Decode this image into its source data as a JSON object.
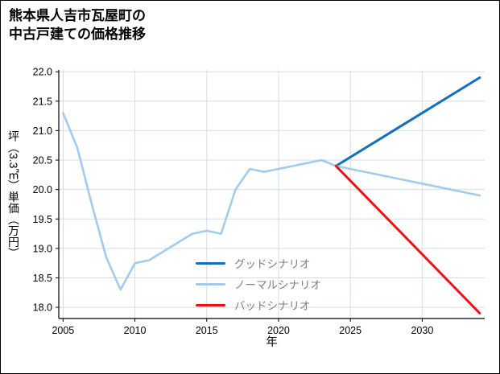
{
  "chart_data": {
    "type": "line",
    "title_lines": [
      "熊本県人吉市瓦屋町の",
      "中古戸建ての価格推移"
    ],
    "title": "熊本県人吉市瓦屋町の中古戸建ての価格推移",
    "xlabel": "年",
    "ylabel": "坪（3.3㎡）単価（万円）",
    "xlim": [
      2004.7,
      2034.35
    ],
    "ylim": [
      17.81,
      22.03
    ],
    "xticks": [
      2005,
      2010,
      2015,
      2020,
      2025,
      2030
    ],
    "yticks": [
      18.0,
      18.5,
      19.0,
      19.5,
      20.0,
      20.5,
      21.0,
      21.5,
      22.0
    ],
    "grid": true,
    "legend_position": "inside-lower-center",
    "colors": {
      "grid": "#d5dde9",
      "axis": "#000000",
      "legend_text": "#7f7f7f",
      "good": "#1170b8",
      "normal": "#a2cbee",
      "bad": "#ed1111"
    },
    "series": [
      {
        "id": "history-actual",
        "label": "",
        "color": "#a2cbee",
        "x": [
          2005,
          2006,
          2007,
          2008,
          2009,
          2010,
          2011,
          2012,
          2013,
          2014,
          2015,
          2016,
          2017,
          2018,
          2019,
          2020,
          2021,
          2022,
          2023,
          2024
        ],
        "y": [
          21.3,
          20.7,
          19.75,
          18.85,
          18.3,
          18.75,
          18.8,
          18.95,
          19.1,
          19.25,
          19.3,
          19.25,
          20.0,
          20.35,
          20.3,
          20.35,
          20.4,
          20.45,
          20.5,
          20.4
        ]
      },
      {
        "id": "good-scenario",
        "label": "グッドシナリオ",
        "color": "#1170b8",
        "x": [
          2024,
          2034
        ],
        "y": [
          20.4,
          21.9
        ]
      },
      {
        "id": "normal-scenario",
        "label": "ノーマルシナリオ",
        "color": "#a2cbee",
        "x": [
          2024,
          2034
        ],
        "y": [
          20.4,
          19.9
        ]
      },
      {
        "id": "bad-scenario",
        "label": "バッドシナリオ",
        "color": "#ed1111",
        "x": [
          2024,
          2034
        ],
        "y": [
          20.4,
          17.9
        ]
      }
    ]
  }
}
